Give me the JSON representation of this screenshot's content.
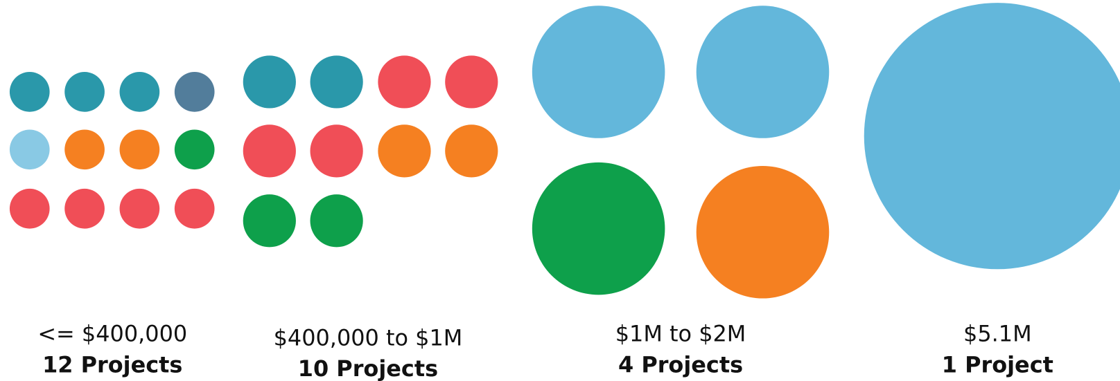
{
  "groups": [
    {
      "label": "<= $400,000",
      "count": "12 Projects",
      "colors": [
        "#2a98aa",
        "#2a98aa",
        "#2a98aa",
        "#527d9b",
        "#89c9e4",
        "#f58021",
        "#f58021",
        "#0ea04b",
        "#f04e57",
        "#f04e57",
        "#f04e57",
        "#f04e57"
      ]
    },
    {
      "label": "$400,000 to $1M",
      "count": "10 Projects",
      "colors": [
        "#2a98aa",
        "#2a98aa",
        "#f04e57",
        "#f04e57",
        "#f04e57",
        "#f04e57",
        "#f58021",
        "#f58021",
        "#0ea04b",
        "#0ea04b"
      ]
    },
    {
      "label": "$1M to $2M",
      "count": "4 Projects",
      "colors": [
        "#63b7db",
        "#63b7db",
        "#0ea04b",
        "#f58021"
      ]
    },
    {
      "label": "$5.1M",
      "count": "1 Project",
      "colors": [
        "#63b7db"
      ]
    }
  ]
}
